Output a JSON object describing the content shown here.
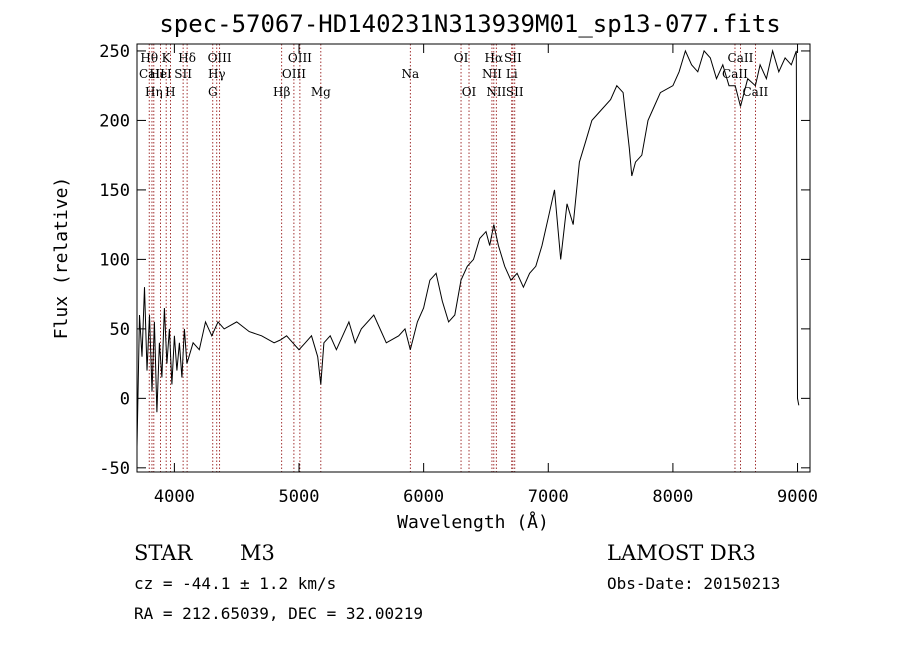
{
  "chart_data": {
    "type": "line",
    "title": "spec-57067-HD140231N313939M01_sp13-077.fits",
    "xlabel": "Wavelength (Å)",
    "ylabel": "Flux (relative)",
    "xlim": [
      3700,
      9100
    ],
    "ylim": [
      -53,
      255
    ],
    "xticks": [
      4000,
      5000,
      6000,
      7000,
      8000,
      9000
    ],
    "yticks": [
      -50,
      0,
      50,
      100,
      150,
      200,
      250
    ],
    "series": [
      {
        "name": "spectrum",
        "x": [
          3700,
          3720,
          3740,
          3760,
          3780,
          3800,
          3820,
          3840,
          3860,
          3880,
          3900,
          3920,
          3940,
          3960,
          3980,
          4000,
          4020,
          4040,
          4060,
          4080,
          4100,
          4150,
          4200,
          4250,
          4300,
          4350,
          4400,
          4500,
          4600,
          4700,
          4800,
          4850,
          4900,
          4950,
          5000,
          5050,
          5100,
          5150,
          5175,
          5200,
          5250,
          5300,
          5400,
          5450,
          5500,
          5600,
          5700,
          5800,
          5850,
          5893,
          5950,
          6000,
          6050,
          6100,
          6150,
          6200,
          6250,
          6300,
          6350,
          6400,
          6450,
          6500,
          6530,
          6563,
          6600,
          6650,
          6700,
          6750,
          6800,
          6850,
          6900,
          6950,
          7000,
          7050,
          7100,
          7150,
          7200,
          7250,
          7300,
          7350,
          7400,
          7500,
          7550,
          7600,
          7650,
          7670,
          7700,
          7750,
          7800,
          7850,
          7900,
          8000,
          8050,
          8100,
          8150,
          8200,
          8250,
          8300,
          8350,
          8400,
          8450,
          8500,
          8542,
          8600,
          8662,
          8700,
          8750,
          8800,
          8850,
          8900,
          8950,
          8990,
          9000,
          9010
        ],
        "values": [
          -35,
          60,
          30,
          80,
          20,
          60,
          5,
          55,
          -10,
          40,
          15,
          65,
          25,
          50,
          10,
          45,
          20,
          40,
          15,
          50,
          25,
          40,
          35,
          55,
          45,
          55,
          50,
          55,
          48,
          45,
          40,
          42,
          45,
          40,
          35,
          40,
          45,
          30,
          10,
          40,
          45,
          35,
          55,
          40,
          50,
          60,
          40,
          45,
          50,
          35,
          55,
          65,
          85,
          90,
          70,
          55,
          60,
          85,
          95,
          100,
          115,
          120,
          110,
          125,
          110,
          95,
          85,
          90,
          80,
          90,
          95,
          110,
          130,
          150,
          100,
          140,
          125,
          170,
          185,
          200,
          205,
          215,
          225,
          220,
          180,
          160,
          170,
          175,
          200,
          210,
          220,
          225,
          235,
          250,
          240,
          235,
          250,
          245,
          230,
          240,
          225,
          225,
          210,
          230,
          225,
          240,
          230,
          250,
          235,
          245,
          240,
          250,
          0,
          -5
        ]
      }
    ],
    "line_markers": [
      {
        "wavelength": 3798,
        "label": "Hθ",
        "row": 1
      },
      {
        "wavelength": 3820,
        "label": "CaII",
        "row": 2
      },
      {
        "wavelength": 3835,
        "label": "Hη",
        "row": 3
      },
      {
        "wavelength": 3889,
        "label": "HeI",
        "row": 2
      },
      {
        "wavelength": 3934,
        "label": "K",
        "row": 1
      },
      {
        "wavelength": 3968,
        "label": "H",
        "row": 3
      },
      {
        "wavelength": 4070,
        "label": "SII",
        "row": 2
      },
      {
        "wavelength": 4102,
        "label": "Hδ",
        "row": 1
      },
      {
        "wavelength": 4308,
        "label": "G",
        "row": 3
      },
      {
        "wavelength": 4340,
        "label": "Hγ",
        "row": 2
      },
      {
        "wavelength": 4363,
        "label": "OIII",
        "row": 1
      },
      {
        "wavelength": 4861,
        "label": "Hβ",
        "row": 3
      },
      {
        "wavelength": 4959,
        "label": "OIII",
        "row": 2
      },
      {
        "wavelength": 5007,
        "label": "OIII",
        "row": 1
      },
      {
        "wavelength": 5175,
        "label": "Mg",
        "row": 3
      },
      {
        "wavelength": 5893,
        "label": "Na",
        "row": 2
      },
      {
        "wavelength": 6300,
        "label": "OI",
        "row": 1
      },
      {
        "wavelength": 6364,
        "label": "OI",
        "row": 3
      },
      {
        "wavelength": 6548,
        "label": "NII",
        "row": 2
      },
      {
        "wavelength": 6563,
        "label": "Hα",
        "row": 1
      },
      {
        "wavelength": 6583,
        "label": "NII",
        "row": 3
      },
      {
        "wavelength": 6707,
        "label": "Li",
        "row": 2
      },
      {
        "wavelength": 6716,
        "label": "SII",
        "row": 1
      },
      {
        "wavelength": 6731,
        "label": "SII",
        "row": 3
      },
      {
        "wavelength": 8498,
        "label": "CaII",
        "row": 2
      },
      {
        "wavelength": 8542,
        "label": "CaII",
        "row": 1
      },
      {
        "wavelength": 8662,
        "label": "CaII",
        "row": 3
      }
    ]
  },
  "footer": {
    "object_class": "STAR",
    "subclass": "M3",
    "survey": "LAMOST DR3",
    "cz": "cz = -44.1 ± 1.2 km/s",
    "obs_date": "Obs-Date: 20150213",
    "coords": "RA = 212.65039, DEC =  32.00219"
  },
  "colors": {
    "spectrum": "#000000",
    "marker": "#8b0000",
    "axis": "#000000"
  }
}
